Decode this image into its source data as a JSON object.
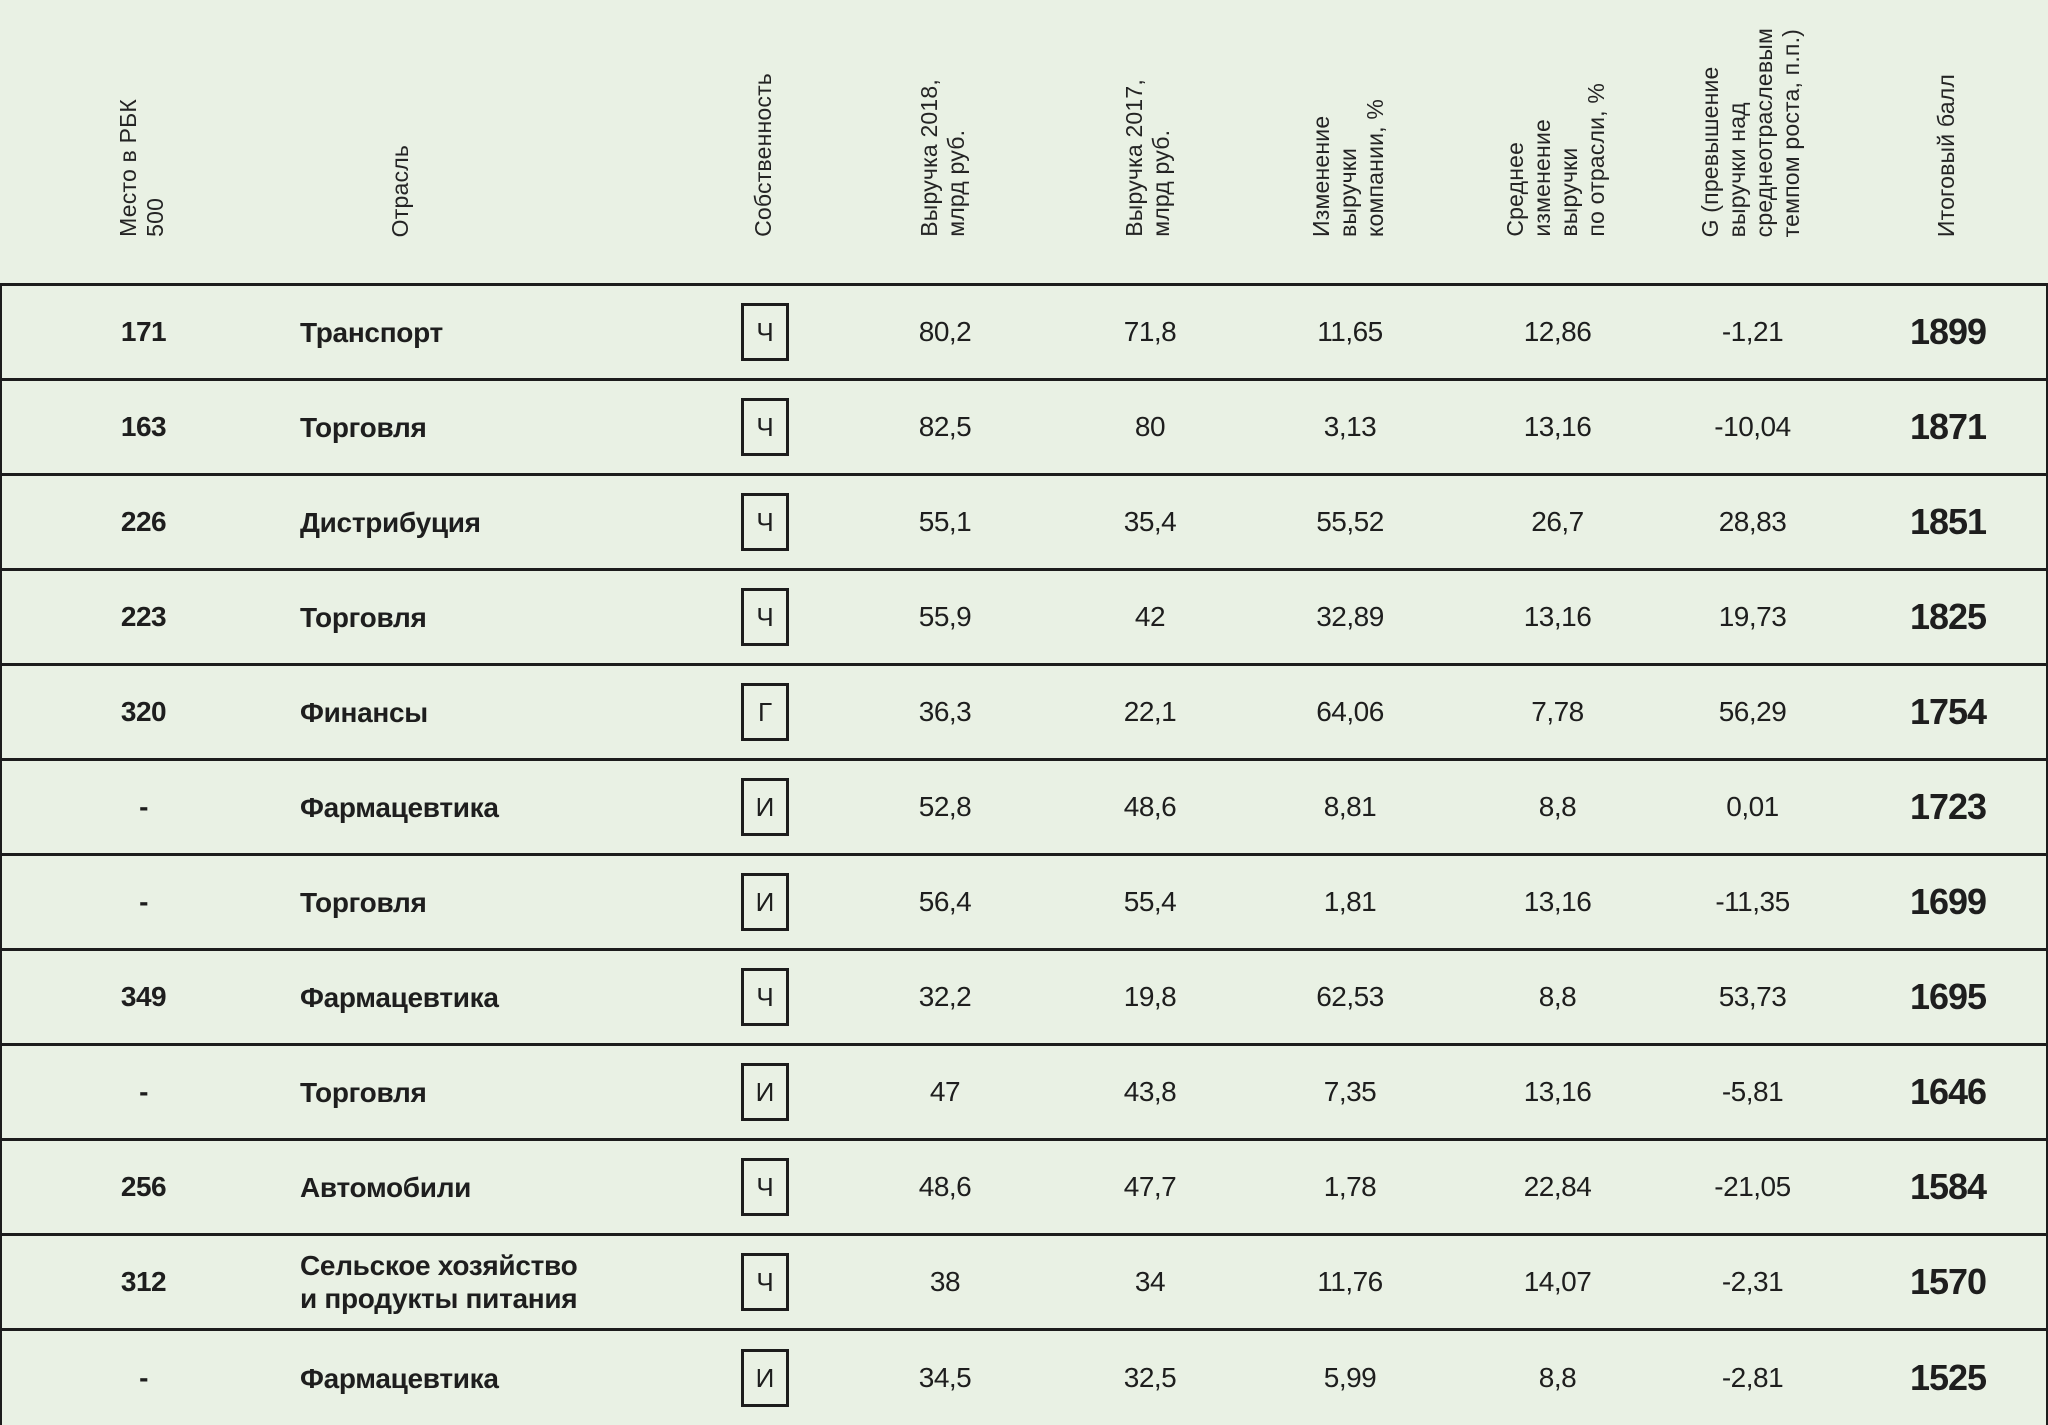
{
  "styles": {
    "background": "#e9f1e4",
    "line_color": "#1c1c1c",
    "text_color": "#1e1e1e"
  },
  "chart_data": {
    "type": "table",
    "columns": [
      {
        "id": "rank",
        "label": "Место в РБК\n500"
      },
      {
        "id": "industry",
        "label": "Отрасль"
      },
      {
        "id": "ownership",
        "label": "Собственность"
      },
      {
        "id": "rev2018",
        "label": "Выручка 2018,\nмлрд руб."
      },
      {
        "id": "rev2017",
        "label": "Выручка 2017,\nмлрд руб."
      },
      {
        "id": "change",
        "label": "Изменение\nвыручки\nкомпании, %"
      },
      {
        "id": "avg_change",
        "label": "Среднее\nизменение\nвыручки\nпо отрасли, %"
      },
      {
        "id": "g",
        "label": "G (превышение\nвыручки над\nсреднеотраслевым\nтемпом роста, п.п.)"
      },
      {
        "id": "score",
        "label": "Итоговый балл"
      }
    ],
    "rows": [
      {
        "rank": "171",
        "industry": "Транспорт",
        "ownership": "Ч",
        "rev2018": "80,2",
        "rev2017": "71,8",
        "change": "11,65",
        "avg_change": "12,86",
        "g": "-1,21",
        "score": "1899"
      },
      {
        "rank": "163",
        "industry": "Торговля",
        "ownership": "Ч",
        "rev2018": "82,5",
        "rev2017": "80",
        "change": "3,13",
        "avg_change": "13,16",
        "g": "-10,04",
        "score": "1871"
      },
      {
        "rank": "226",
        "industry": "Дистрибуция",
        "ownership": "Ч",
        "rev2018": "55,1",
        "rev2017": "35,4",
        "change": "55,52",
        "avg_change": "26,7",
        "g": "28,83",
        "score": "1851"
      },
      {
        "rank": "223",
        "industry": "Торговля",
        "ownership": "Ч",
        "rev2018": "55,9",
        "rev2017": "42",
        "change": "32,89",
        "avg_change": "13,16",
        "g": "19,73",
        "score": "1825"
      },
      {
        "rank": "320",
        "industry": "Финансы",
        "ownership": "Г",
        "rev2018": "36,3",
        "rev2017": "22,1",
        "change": "64,06",
        "avg_change": "7,78",
        "g": "56,29",
        "score": "1754"
      },
      {
        "rank": "-",
        "industry": "Фармацевтика",
        "ownership": "И",
        "rev2018": "52,8",
        "rev2017": "48,6",
        "change": "8,81",
        "avg_change": "8,8",
        "g": "0,01",
        "score": "1723"
      },
      {
        "rank": "-",
        "industry": "Торговля",
        "ownership": "И",
        "rev2018": "56,4",
        "rev2017": "55,4",
        "change": "1,81",
        "avg_change": "13,16",
        "g": "-11,35",
        "score": "1699"
      },
      {
        "rank": "349",
        "industry": "Фармацевтика",
        "ownership": "Ч",
        "rev2018": "32,2",
        "rev2017": "19,8",
        "change": "62,53",
        "avg_change": "8,8",
        "g": "53,73",
        "score": "1695"
      },
      {
        "rank": "-",
        "industry": "Торговля",
        "ownership": "И",
        "rev2018": "47",
        "rev2017": "43,8",
        "change": "7,35",
        "avg_change": "13,16",
        "g": "-5,81",
        "score": "1646"
      },
      {
        "rank": "256",
        "industry": "Автомобили",
        "ownership": "Ч",
        "rev2018": "48,6",
        "rev2017": "47,7",
        "change": "1,78",
        "avg_change": "22,84",
        "g": "-21,05",
        "score": "1584"
      },
      {
        "rank": "312",
        "industry": "Сельское хозяйство\nи продукты питания",
        "ownership": "Ч",
        "rev2018": "38",
        "rev2017": "34",
        "change": "11,76",
        "avg_change": "14,07",
        "g": "-2,31",
        "score": "1570"
      },
      {
        "rank": "-",
        "industry": "Фармацевтика",
        "ownership": "И",
        "rev2018": "34,5",
        "rev2017": "32,5",
        "change": "5,99",
        "avg_change": "8,8",
        "g": "-2,81",
        "score": "1525"
      }
    ]
  }
}
